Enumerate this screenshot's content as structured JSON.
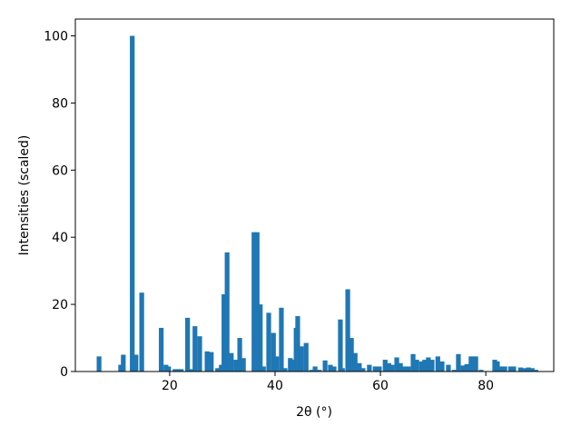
{
  "chart_data": {
    "type": "bar",
    "xlabel": "2θ (°)",
    "ylabel": "Intensities (scaled)",
    "color": "#1f77b4",
    "bar_width": 0.9,
    "x": [
      6.6,
      10.7,
      11.2,
      12.9,
      13.6,
      14.7,
      18.4,
      19.3,
      19.8,
      21.0,
      21.6,
      22.2,
      23.4,
      24.1,
      24.8,
      25.7,
      27.1,
      27.9,
      29.1,
      29.8,
      30.3,
      30.9,
      31.2,
      31.7,
      32.6,
      33.3,
      34.0,
      36.0,
      36.6,
      37.2,
      37.8,
      38.8,
      39.7,
      40.3,
      41.2,
      41.9,
      42.9,
      43.4,
      44.0,
      44.3,
      45.0,
      45.9,
      46.9,
      47.6,
      48.4,
      49.5,
      50.5,
      51.2,
      52.4,
      52.8,
      53.8,
      54.5,
      55.2,
      56.0,
      56.7,
      57.9,
      59.0,
      59.8,
      60.9,
      61.6,
      62.2,
      63.1,
      63.8,
      64.5,
      65.3,
      66.2,
      66.9,
      67.8,
      68.4,
      69.1,
      69.8,
      70.9,
      71.7,
      72.9,
      74.0,
      74.8,
      75.7,
      76.4,
      77.2,
      78.1,
      79.1,
      81.7,
      82.2,
      83.1,
      83.6,
      84.7,
      85.3,
      86.6,
      87.4,
      88.1,
      88.8,
      89.5
    ],
    "values": [
      4.5,
      2,
      5,
      100,
      5,
      23.5,
      13,
      2,
      1.5,
      0.7,
      0.7,
      0.7,
      16,
      0.7,
      13.5,
      10.5,
      6,
      5.8,
      1,
      2,
      23,
      35.5,
      4,
      5.5,
      3.5,
      10,
      4,
      41.5,
      41.5,
      20,
      1.5,
      17.5,
      11.5,
      4.5,
      19,
      1,
      4,
      3.5,
      13,
      16.5,
      7.5,
      8.5,
      0.5,
      1.5,
      0.5,
      3.3,
      2,
      1.5,
      15.5,
      1,
      24.5,
      10,
      5.5,
      2.5,
      1,
      2,
      1.5,
      1.5,
      3.5,
      2.5,
      2,
      4.2,
      2.5,
      1.5,
      1.5,
      5.2,
      3.5,
      3,
      3.5,
      4.2,
      3.5,
      4.5,
      3,
      2,
      0.5,
      5.2,
      1.8,
      2.2,
      4.5,
      4.5,
      0.5,
      3.5,
      3,
      1.5,
      1.5,
      1.5,
      1.5,
      1.2,
      1,
      1.2,
      1,
      0.5
    ],
    "xlim": [
      2.1,
      92.9
    ],
    "xticks": [
      20,
      40,
      60,
      80
    ],
    "ylim": [
      0,
      105
    ],
    "yticks": [
      0,
      20,
      40,
      60,
      80,
      100
    ]
  }
}
